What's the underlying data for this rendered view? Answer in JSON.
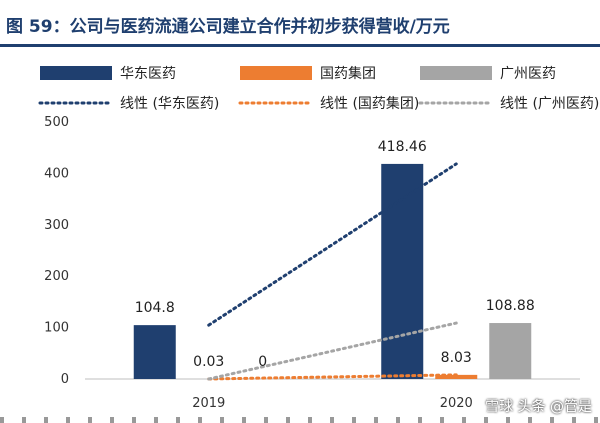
{
  "figure": {
    "title": "图 59：公司与医药流通公司建立合作并初步获得营收/万元",
    "watermark": "雪球 头条 @管是"
  },
  "chart_data": {
    "type": "bar",
    "categories": [
      "2019",
      "2020"
    ],
    "series": [
      {
        "name": "华东医药",
        "values": [
          104.8,
          418.46
        ],
        "color": "#1f3f6f"
      },
      {
        "name": "国药集团",
        "values": [
          0.03,
          8.03
        ],
        "color": "#ed7d31"
      },
      {
        "name": "广州医药",
        "values": [
          0,
          108.88
        ],
        "color": "#a5a5a5"
      }
    ],
    "trendlines": [
      {
        "name": "线性 (华东医药)",
        "color": "#1f3f6f",
        "style": "dotted"
      },
      {
        "name": "线性 (国药集团)",
        "color": "#ed7d31",
        "style": "dotted"
      },
      {
        "name": "线性 (广州医药)",
        "color": "#a5a5a5",
        "style": "dotted"
      }
    ],
    "data_labels": [
      [
        "104.8",
        "418.46"
      ],
      [
        "0.03",
        "8.03"
      ],
      [
        "0",
        "108.88"
      ]
    ],
    "ylim": [
      0,
      500
    ],
    "yticks": [
      0,
      100,
      200,
      300,
      400,
      500
    ],
    "xlabel": "",
    "ylabel": "",
    "grid": false,
    "legend_position": "top"
  }
}
